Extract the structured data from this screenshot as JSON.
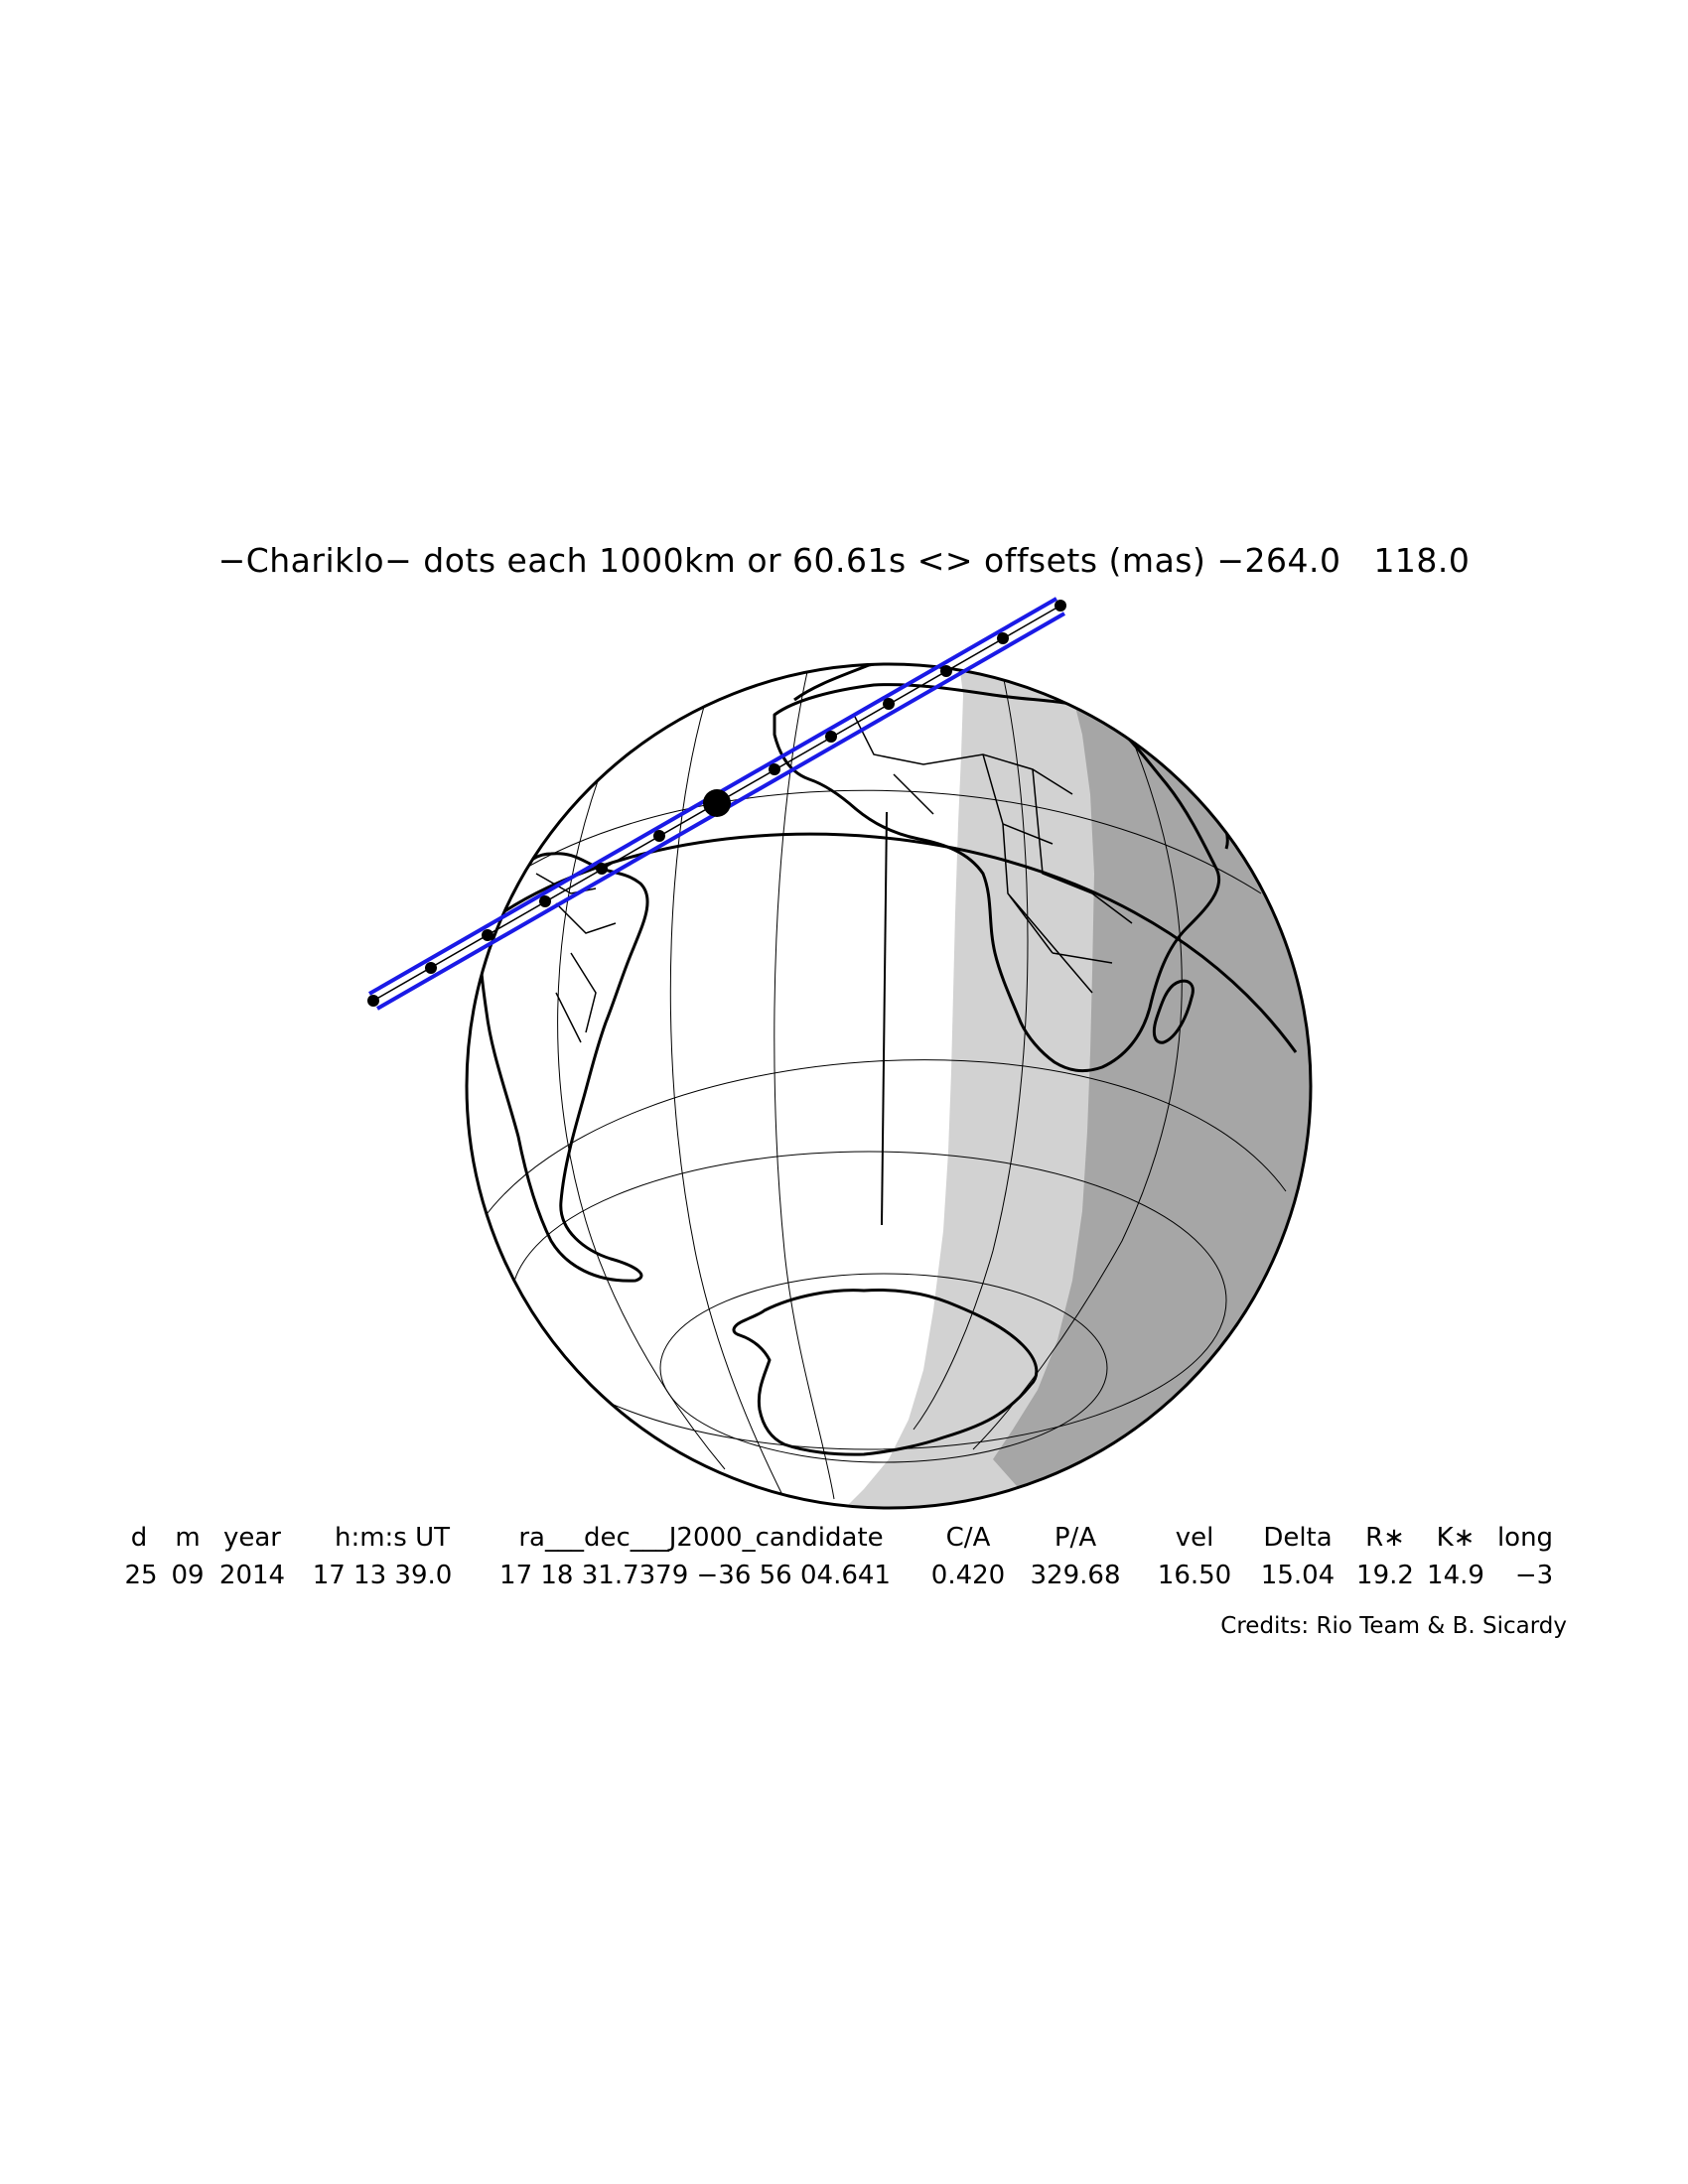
{
  "title": "−Chariklo− dots each 1000km or 60.61s <> offsets (mas) −264.0   118.0",
  "table": {
    "headers": [
      "d",
      "m",
      "year",
      "h:m:s UT",
      "ra___dec___J2000_candidate",
      "C/A",
      "P/A",
      "vel",
      "Delta",
      "R∗",
      "K∗",
      "long"
    ],
    "values": [
      "25",
      "09",
      "2014",
      "17 13 39.0",
      "17 18 31.7379 −36 56 04.641",
      "0.420",
      "329.68",
      "16.50",
      "15.04",
      "19.2",
      "14.9",
      "−3"
    ]
  },
  "credits": "Credits: Rio Team & B. Sicardy",
  "colors": {
    "path": "#1a1ae6",
    "night": "#a6a6a6",
    "twilight": "#d2d2d2",
    "day": "#ffffff",
    "outline": "#000000"
  }
}
